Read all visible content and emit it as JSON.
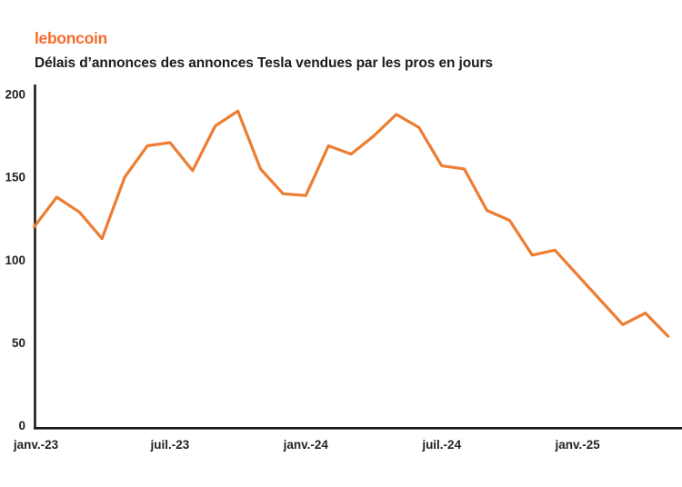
{
  "header": {
    "logo": "leboncoin",
    "title": "Délais d’annonces des annonces Tesla vendues par les pros en jours"
  },
  "colors": {
    "brand_orange": "#F56B2A",
    "line_orange": "#ED7D31",
    "axis_black": "#1a1a1a",
    "text_dark": "#222222"
  },
  "chart_data": {
    "type": "line",
    "title": "Délais d’annonces des annonces Tesla vendues par les pros en jours",
    "xlabel": "",
    "ylabel": "",
    "ylim": [
      0,
      200
    ],
    "grid": false,
    "legend_position": "none",
    "line_color": "#ED7D31",
    "axis_color": "#1a1a1a",
    "text_color": "#222222",
    "x": [
      "janv.-23",
      "févr.-23",
      "mars-23",
      "avr.-23",
      "mai-23",
      "juin-23",
      "juil.-23",
      "août-23",
      "sept.-23",
      "oct.-23",
      "nov.-23",
      "déc.-23",
      "janv.-24",
      "févr.-24",
      "mars-24",
      "avr.-24",
      "mai-24",
      "juin-24",
      "juil.-24",
      "août-24",
      "sept.-24",
      "oct.-24",
      "nov.-24",
      "déc.-24",
      "janv.-25",
      "févr.-25",
      "mars-25",
      "avr.-25",
      "mai-25"
    ],
    "values": [
      120,
      138,
      129,
      113,
      150,
      169,
      171,
      154,
      181,
      190,
      155,
      140,
      139,
      169,
      164,
      175,
      188,
      180,
      157,
      155,
      130,
      124,
      103,
      106,
      91,
      76,
      61,
      68,
      54
    ],
    "y_ticks": [
      {
        "value": 0,
        "label": "0"
      },
      {
        "value": 50,
        "label": "50"
      },
      {
        "value": 100,
        "label": "100"
      },
      {
        "value": 150,
        "label": "150"
      },
      {
        "value": 200,
        "label": "200"
      }
    ],
    "x_ticks": [
      {
        "index": 0,
        "label": "janv.-23"
      },
      {
        "index": 6,
        "label": "juil.-23"
      },
      {
        "index": 12,
        "label": "janv.-24"
      },
      {
        "index": 18,
        "label": "juil.-24"
      },
      {
        "index": 24,
        "label": "janv.-25"
      }
    ]
  }
}
